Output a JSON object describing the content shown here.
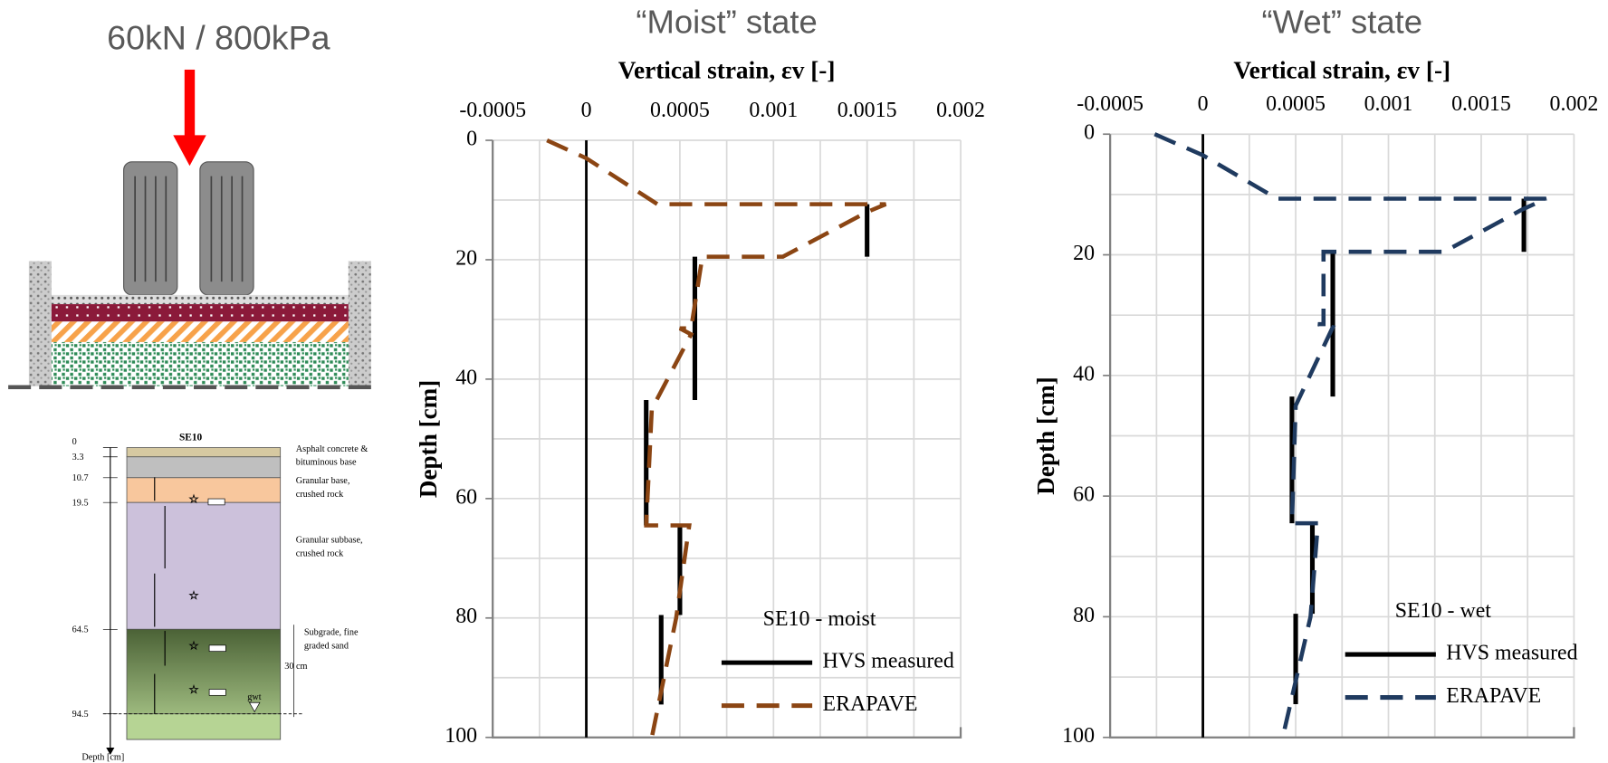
{
  "chart_data": [
    {
      "type": "line",
      "title": "“Moist” state",
      "x_label": "Vertical strain, εv [-]",
      "y_label": "Depth [cm]",
      "xlim": [
        -0.0005,
        0.002
      ],
      "xticks": [
        -0.0005,
        0,
        0.0005,
        0.001,
        0.0015,
        0.002
      ],
      "xminorticks": [
        -0.00025,
        0.00025,
        0.00075,
        0.00125,
        0.00175
      ],
      "ylim": [
        0,
        100
      ],
      "yticks": [
        0,
        20,
        40,
        60,
        80,
        100
      ],
      "yminorticks": [
        10,
        30,
        50,
        70,
        90
      ],
      "y_inverted": true,
      "grid": true,
      "legend_title": "SE10 - moist",
      "legend": "lower right",
      "series": [
        {
          "name": "HVS measured",
          "color": "#000000",
          "style": "solid",
          "x": [
            0.0015,
            0.0015,
            null,
            0.00058,
            0.00058,
            null,
            0.00032,
            0.00032,
            null,
            0.0005,
            0.0005,
            null,
            0.0004,
            0.0004
          ],
          "y": [
            10.7,
            19.5,
            null,
            19.5,
            43.5,
            null,
            43.5,
            64.5,
            null,
            64.5,
            79.5,
            null,
            79.5,
            94.5
          ]
        },
        {
          "name": "ERAPAVE",
          "color": "#8b4513",
          "style": "dashed",
          "x": [
            -0.00021,
            0,
            0.00038,
            0.0016,
            0.0015,
            0.00105,
            0.00062,
            0.00056,
            0.0005,
            0.00056,
            0.00035,
            0.00032,
            0.00055,
            0.00048,
            0.00035
          ],
          "y": [
            0,
            3,
            10.7,
            10.7,
            12,
            19.5,
            19.5,
            31.5,
            31.5,
            32.5,
            45,
            64.5,
            64.5,
            80,
            100
          ]
        }
      ]
    },
    {
      "type": "line",
      "title": "“Wet” state",
      "x_label": "Vertical strain, εv [-]",
      "y_label": "Depth [cm]",
      "xlim": [
        -0.0005,
        0.002
      ],
      "xticks": [
        -0.0005,
        0,
        0.0005,
        0.001,
        0.0015,
        0.002
      ],
      "xminorticks": [
        -0.00025,
        0.00025,
        0.00075,
        0.00125,
        0.00175
      ],
      "ylim": [
        0,
        100
      ],
      "yticks": [
        0,
        20,
        40,
        60,
        80,
        100
      ],
      "yminorticks": [
        10,
        30,
        50,
        70,
        90
      ],
      "y_inverted": true,
      "grid": true,
      "legend_title": "SE10 - wet",
      "legend": "lower right",
      "series": [
        {
          "name": "HVS measured",
          "color": "#000000",
          "style": "solid",
          "x": [
            0.00173,
            0.00173,
            null,
            0.0007,
            0.0007,
            null,
            0.00048,
            0.00048,
            null,
            0.00059,
            0.00059,
            null,
            0.0005,
            0.0005
          ],
          "y": [
            10.7,
            19.5,
            null,
            19.5,
            43.5,
            null,
            43.5,
            64.5,
            null,
            64.5,
            79.5,
            null,
            79.5,
            94.5
          ]
        },
        {
          "name": "ERAPAVE",
          "color": "#1f3a5f",
          "style": "dashed",
          "x": [
            -0.00026,
            0,
            0.0004,
            0.00185,
            0.00172,
            0.0013,
            0.00065,
            0.00065,
            0.00062,
            0.0007,
            0.0005,
            0.00048,
            0.00062,
            0.00058,
            0.00043
          ],
          "y": [
            0,
            3.5,
            10.7,
            10.7,
            12.5,
            19.5,
            19.5,
            31.5,
            31.5,
            32,
            45,
            64.5,
            64.5,
            80,
            100
          ]
        }
      ]
    }
  ],
  "diagram": {
    "load_label": "60kN / 800kPa",
    "profile": {
      "title": "SE10",
      "depths": [
        0,
        3.3,
        10.7,
        19.5,
        64.5,
        94.5
      ],
      "depth_axis_label": "Depth [cm]",
      "layers": [
        [
          "Asphalt concrete &",
          "bituminous base"
        ],
        [
          "Granular base,",
          "crushed rock"
        ],
        [
          "Granular subbase,",
          "crushed rock"
        ],
        [
          "Subgrade, fine",
          "graded sand"
        ]
      ],
      "thickness_label": "30 cm",
      "gwt_label": "gwt"
    }
  }
}
